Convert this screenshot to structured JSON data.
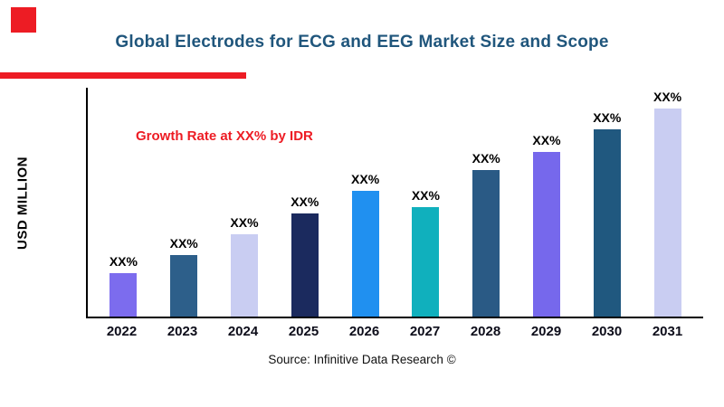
{
  "title": "Global Electrodes for ECG and EEG Market Size and Scope",
  "annotation": "Growth Rate at XX% by IDR",
  "source": "Source: Infinitive Data Research ©",
  "colors": {
    "accent_red": "#ed1c24",
    "title_blue": "#20567c",
    "axis_black": "#000000"
  },
  "chart_data": {
    "type": "bar",
    "title": "Global Electrodes for ECG and EEG Market Size and Scope",
    "xlabel": "",
    "ylabel": "USD MILLION",
    "ylim": [
      0,
      100
    ],
    "grid": false,
    "legend": false,
    "categories": [
      "2022",
      "2023",
      "2024",
      "2025",
      "2026",
      "2027",
      "2028",
      "2029",
      "2030",
      "2031"
    ],
    "values": [
      19,
      27,
      36,
      45,
      55,
      48,
      64,
      72,
      82,
      91
    ],
    "value_labels": [
      "XX%",
      "XX%",
      "XX%",
      "XX%",
      "XX%",
      "XX%",
      "XX%",
      "XX%",
      "XX%",
      "XX%"
    ],
    "bar_colors": [
      "#7c6cee",
      "#2d5f8a",
      "#c9cdf2",
      "#1b2a5e",
      "#2090f0",
      "#10b0bd",
      "#2a5a85",
      "#7668ec",
      "#20587f",
      "#c9cdf2"
    ]
  }
}
